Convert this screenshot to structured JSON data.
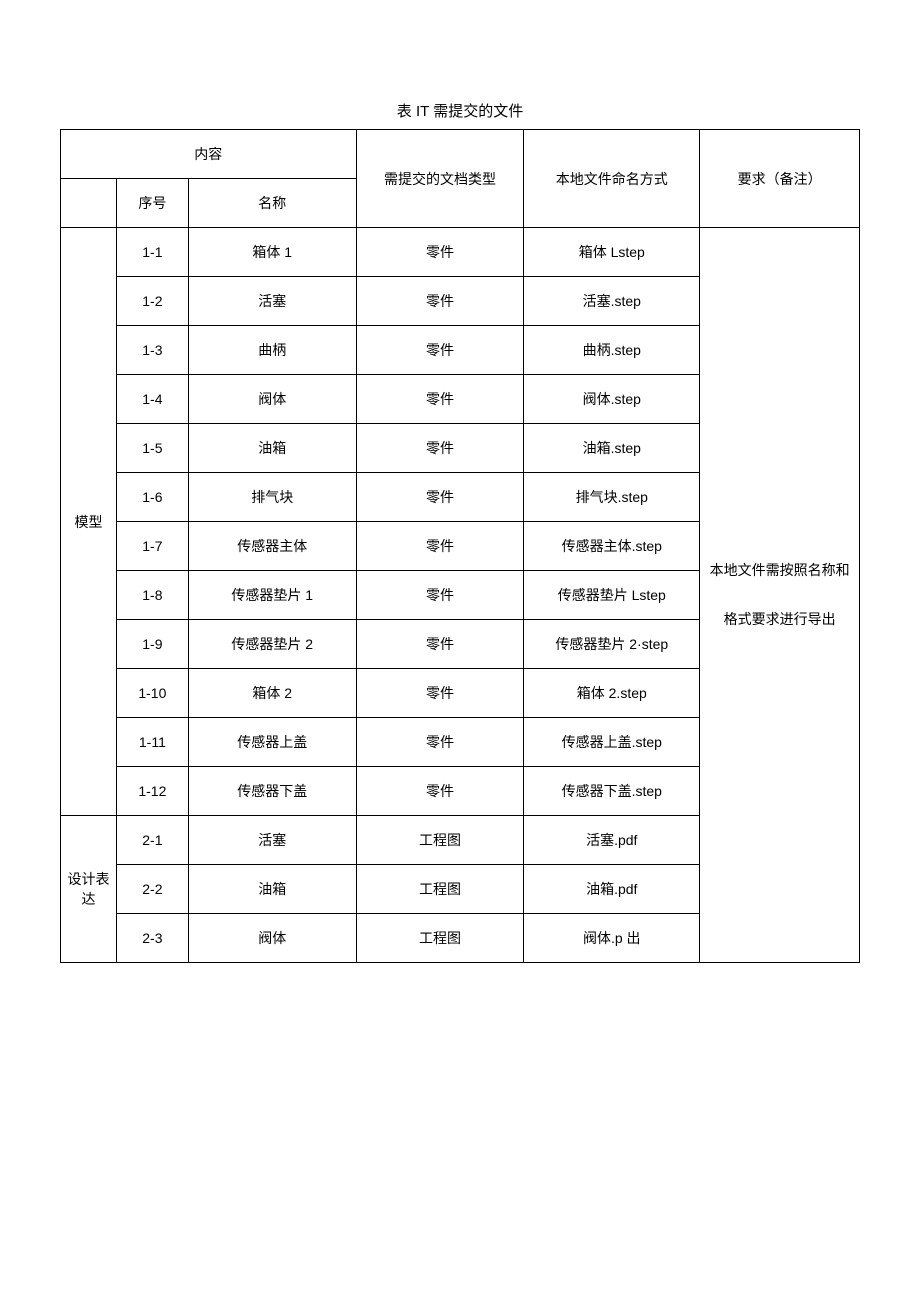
{
  "title": "表 IT 需提交的文件",
  "headers": {
    "content": "内容",
    "seq": "序号",
    "name": "名称",
    "doctype": "需提交的文档类型",
    "filename": "本地文件命名方式",
    "notes": "要求（备注）"
  },
  "categories": {
    "model": "模型",
    "design": "设计表达"
  },
  "rows": {
    "r1_1": {
      "seq": "1-1",
      "name": "箱体 1",
      "doctype": "零件",
      "filename": "箱体 Lstep"
    },
    "r1_2": {
      "seq": "1-2",
      "name": "活塞",
      "doctype": "零件",
      "filename": "活塞.step"
    },
    "r1_3": {
      "seq": "1-3",
      "name": "曲柄",
      "doctype": "零件",
      "filename": "曲柄.step"
    },
    "r1_4": {
      "seq": "1-4",
      "name": "阀体",
      "doctype": "零件",
      "filename": "阀体.step"
    },
    "r1_5": {
      "seq": "1-5",
      "name": "油箱",
      "doctype": "零件",
      "filename": "油箱.step"
    },
    "r1_6": {
      "seq": "1-6",
      "name": "排气块",
      "doctype": "零件",
      "filename": "排气块.step"
    },
    "r1_7": {
      "seq": "1-7",
      "name": "传感器主体",
      "doctype": "零件",
      "filename": "传感器主体.step"
    },
    "r1_8": {
      "seq": "1-8",
      "name": "传感器垫片 1",
      "doctype": "零件",
      "filename": "传感器垫片 Lstep"
    },
    "r1_9": {
      "seq": "1-9",
      "name": "传感器垫片 2",
      "doctype": "零件",
      "filename": "传感器垫片 2·step"
    },
    "r1_10": {
      "seq": "1-10",
      "name": "箱体 2",
      "doctype": "零件",
      "filename": "箱体 2.step"
    },
    "r1_11": {
      "seq": "1-11",
      "name": "传感器上盖",
      "doctype": "零件",
      "filename": "传感器上盖.step"
    },
    "r1_12": {
      "seq": "1-12",
      "name": "传感器下盖",
      "doctype": "零件",
      "filename": "传感器下盖.step"
    },
    "r2_1": {
      "seq": "2-1",
      "name": "活塞",
      "doctype": "工程图",
      "filename": "活塞.pdf"
    },
    "r2_2": {
      "seq": "2-2",
      "name": "油箱",
      "doctype": "工程图",
      "filename": "油箱.pdf"
    },
    "r2_3": {
      "seq": "2-3",
      "name": "阀体",
      "doctype": "工程图",
      "filename": "阀体.p 出"
    }
  },
  "notes_text": "本地文件需按照名称和格式要求进行导出",
  "table_style": {
    "border_color": "#000000",
    "background_color": "#ffffff",
    "font_size_body": 14,
    "font_size_title": 15,
    "cell_padding_vertical": 14,
    "cell_padding_horizontal": 6,
    "column_widths_pct": [
      7,
      9,
      21,
      21,
      22,
      20
    ]
  }
}
